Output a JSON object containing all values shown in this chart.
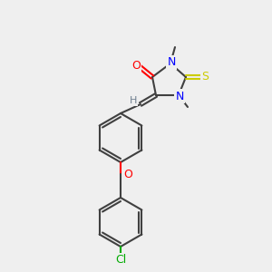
{
  "bg_color": "#efefef",
  "bond_color": "#404040",
  "bond_width": 1.5,
  "atom_colors": {
    "O": "#ff0000",
    "N": "#0000ff",
    "S": "#cccc00",
    "Cl": "#00aa00",
    "H": "#708090",
    "C": "#404040"
  },
  "font_size": 8
}
